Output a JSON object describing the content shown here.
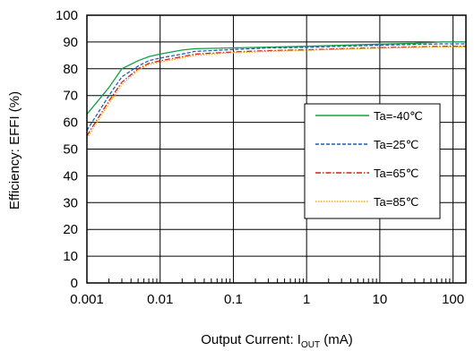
{
  "chart_data": {
    "type": "line",
    "xscale": "log",
    "xlim": [
      0.001,
      150
    ],
    "ylim": [
      0,
      100
    ],
    "xticks": [
      0.001,
      0.01,
      0.1,
      1,
      10,
      100
    ],
    "xtick_labels": [
      "0.001",
      "0.01",
      "0.1",
      "1",
      "10",
      "100"
    ],
    "yticks": [
      0,
      10,
      20,
      30,
      40,
      50,
      60,
      70,
      80,
      90,
      100
    ],
    "ytick_labels": [
      "0",
      "10",
      "20",
      "30",
      "40",
      "50",
      "60",
      "70",
      "80",
      "90",
      "100"
    ],
    "xlabel": {
      "main": "Output Current: I",
      "sub": "OUT",
      "unit": " (mA)"
    },
    "ylabel": "Efficiency: EFFI (%)",
    "grid": true,
    "legend_position": "right",
    "series": [
      {
        "name": "Ta=-40℃",
        "color": "#10a040",
        "dash": "",
        "x": [
          0.001,
          0.002,
          0.003,
          0.005,
          0.007,
          0.01,
          0.02,
          0.03,
          0.1,
          0.3,
          1,
          3,
          10,
          30,
          70,
          150
        ],
        "y": [
          63,
          73,
          80,
          83,
          84.5,
          85.5,
          87,
          87.5,
          87.8,
          88.1,
          88.4,
          88.8,
          89.2,
          89.5,
          90,
          90
        ]
      },
      {
        "name": "Ta=25℃",
        "color": "#1f5fb4",
        "dash": "4,2",
        "x": [
          0.001,
          0.002,
          0.003,
          0.005,
          0.007,
          0.01,
          0.02,
          0.03,
          0.1,
          0.3,
          1,
          3,
          10,
          30,
          70,
          150
        ],
        "y": [
          57,
          70,
          77,
          81,
          83,
          84,
          85.5,
          86.5,
          87.2,
          87.8,
          88,
          88.4,
          88.8,
          89.1,
          89.3,
          89.3
        ]
      },
      {
        "name": "Ta=65℃",
        "color": "#d02020",
        "dash": "6,2,1.5,2",
        "x": [
          0.001,
          0.002,
          0.003,
          0.005,
          0.007,
          0.01,
          0.02,
          0.03,
          0.1,
          0.3,
          1,
          3,
          10,
          30,
          70,
          150
        ],
        "y": [
          55,
          68,
          75,
          80,
          82,
          83,
          84.5,
          85.5,
          86.3,
          86.8,
          87.1,
          87.5,
          87.9,
          88.2,
          88.4,
          88.4
        ]
      },
      {
        "name": "Ta=85℃",
        "color": "#f0b000",
        "dash": "1.5,1.5",
        "x": [
          0.001,
          0.002,
          0.003,
          0.005,
          0.007,
          0.01,
          0.02,
          0.03,
          0.1,
          0.3,
          1,
          3,
          10,
          30,
          70,
          150
        ],
        "y": [
          54,
          67,
          74,
          79.5,
          81.5,
          82.5,
          84,
          85,
          86,
          86.5,
          86.9,
          87.3,
          87.7,
          88,
          88.2,
          88.2
        ]
      }
    ]
  }
}
